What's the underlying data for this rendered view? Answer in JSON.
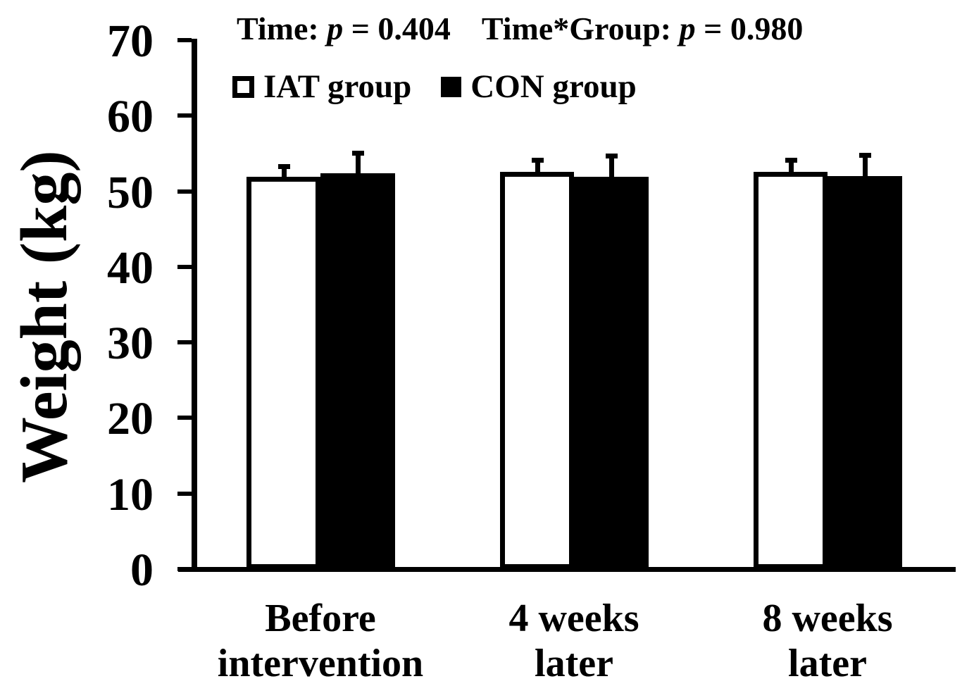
{
  "figure": {
    "background": "#ffffff",
    "foreground": "#000000"
  },
  "stats": {
    "time_prefix": "Time: ",
    "time_symbol": "p",
    "time_value": " = 0.404",
    "interaction_prefix": "Time*Group: ",
    "interaction_symbol": "p",
    "interaction_value": " = 0.980"
  },
  "legend": {
    "items": [
      {
        "label": "IAT group",
        "swatch": "white-outlined-square"
      },
      {
        "label": "CON group",
        "swatch": "black-filled-square"
      }
    ]
  },
  "chart_data": {
    "type": "bar",
    "title": "",
    "xlabel": "",
    "ylabel": "Weight (kg)",
    "ylim": [
      0,
      70
    ],
    "yticks": [
      0,
      10,
      20,
      30,
      40,
      50,
      60,
      70
    ],
    "categories": [
      "Before\nintervention",
      "4 weeks\nlater",
      "8 weeks\nlater"
    ],
    "series": [
      {
        "name": "IAT group",
        "fill": "#ffffff",
        "stroke": "#000000",
        "values": [
          51.9,
          52.6,
          52.6
        ],
        "errors": [
          1.4,
          1.6,
          1.6
        ]
      },
      {
        "name": "CON group",
        "fill": "#000000",
        "stroke": "#000000",
        "values": [
          52.4,
          51.9,
          52.0
        ],
        "errors": [
          2.7,
          2.8,
          2.8
        ]
      }
    ],
    "error_bars": "upper-only",
    "grid": false,
    "legend_position": "top-left-inside",
    "annotations": [
      "Time: p = 0.404",
      "Time*Group: p = 0.980"
    ]
  }
}
